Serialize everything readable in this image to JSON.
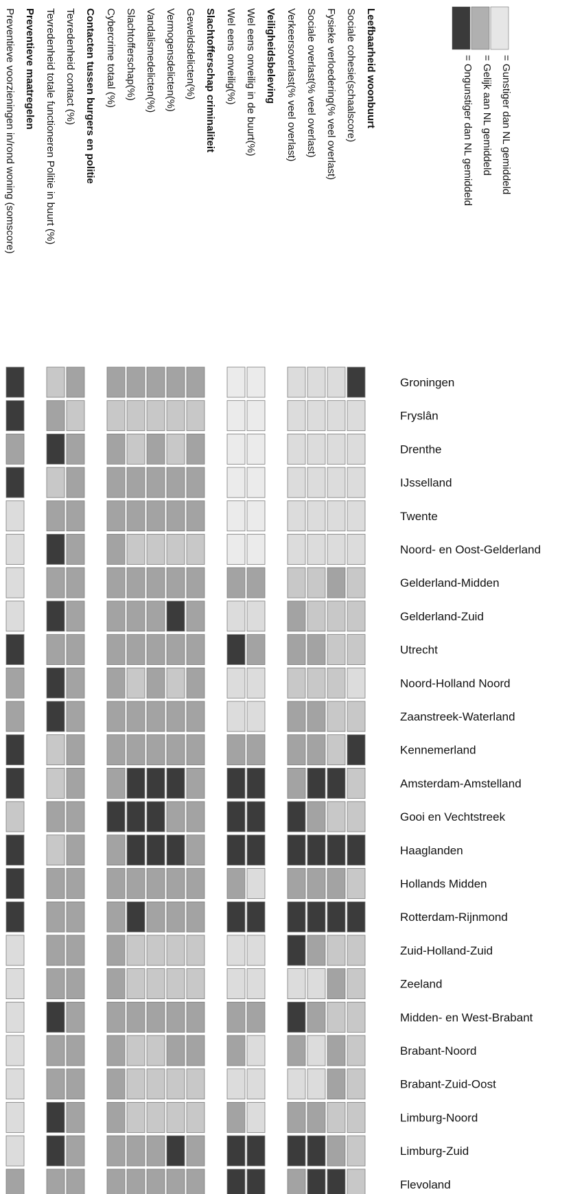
{
  "chart_data": {
    "type": "heatmap",
    "orientation": "rotated-90-clockwise",
    "legend": [
      {
        "label": "= Gunstiger dan NL gemiddeld",
        "level": 0
      },
      {
        "label": "= Gelijk aan NL gemiddeld",
        "level": 1
      },
      {
        "label": "= Ongunstiger dan NL gemiddeld",
        "level": 2
      }
    ],
    "level_colors": [
      "#e6e6e6",
      "#b0b0b0",
      "#3a3a3a"
    ],
    "cell_palette": [
      "#ebebeb",
      "#dcdcdc",
      "#c8c8c8",
      "#a3a3a3",
      "#3b3b3b"
    ],
    "regions": [
      "Groningen",
      "Fryslân",
      "Drenthe",
      "IJsselland",
      "Twente",
      "Noord- en Oost-Gelderland",
      "Gelderland-Midden",
      "Gelderland-Zuid",
      "Utrecht",
      "Noord-Holland Noord",
      "Zaanstreek-Waterland",
      "Kennemerland",
      "Amsterdam-Amstelland",
      "Gooi en Vechtstreek",
      "Haaglanden",
      "Hollands Midden",
      "Rotterdam-Rijnmond",
      "Zuid-Holland-Zuid",
      "Zeeland",
      "Midden- en West-Brabant",
      "Brabant-Noord",
      "Brabant-Zuid-Oost",
      "Limburg-Noord",
      "Limburg-Zuid",
      "Flevoland"
    ],
    "groups": [
      {
        "heading": "Leefbaarheid woonbuurt",
        "indicators": [
          {
            "label": "Sociale cohesie(schaalscore)",
            "values": [
              4,
              1,
              1,
              1,
              1,
              1,
              2,
              2,
              2,
              1,
              2,
              4,
              2,
              2,
              4,
              2,
              4,
              2,
              2,
              2,
              2,
              2,
              2,
              2,
              2
            ]
          },
          {
            "label": "Fysieke verloedering(% veel overlast)",
            "values": [
              1,
              1,
              1,
              1,
              1,
              1,
              3,
              2,
              2,
              2,
              2,
              2,
              4,
              2,
              4,
              3,
              4,
              2,
              3,
              2,
              3,
              3,
              2,
              3,
              4
            ]
          },
          {
            "label": "Sociale overlast(% veel overlast)",
            "values": [
              1,
              1,
              1,
              1,
              1,
              1,
              2,
              2,
              3,
              2,
              3,
              3,
              4,
              3,
              4,
              3,
              4,
              3,
              1,
              3,
              1,
              1,
              3,
              4,
              4
            ]
          },
          {
            "label": "Verkeersoverlast(% veel overlast)",
            "values": [
              1,
              1,
              1,
              1,
              1,
              1,
              2,
              3,
              3,
              2,
              3,
              3,
              3,
              4,
              4,
              3,
              4,
              4,
              1,
              4,
              3,
              1,
              3,
              4,
              3
            ]
          }
        ]
      },
      {
        "heading": "Veiligheidsbeleving",
        "indicators": [
          {
            "label": "Wel eens onveilig in de buurt(%)",
            "values": [
              0,
              0,
              0,
              0,
              0,
              0,
              3,
              1,
              3,
              1,
              1,
              3,
              4,
              4,
              4,
              1,
              4,
              1,
              1,
              3,
              1,
              1,
              1,
              4,
              4
            ]
          },
          {
            "label": "Wel eens onveilig(%)",
            "values": [
              0,
              0,
              0,
              0,
              0,
              0,
              3,
              1,
              4,
              1,
              1,
              3,
              4,
              4,
              4,
              3,
              4,
              1,
              1,
              3,
              3,
              1,
              3,
              4,
              4
            ]
          }
        ]
      },
      {
        "heading": "Slachtofferschap criminaliteit",
        "indicators": [
          {
            "label": "Geweldsdelicten(%)",
            "values": [
              3,
              2,
              3,
              3,
              3,
              2,
              3,
              3,
              3,
              3,
              3,
              3,
              3,
              3,
              3,
              3,
              3,
              2,
              2,
              3,
              3,
              2,
              2,
              3,
              3
            ]
          },
          {
            "label": "Vermogensdelicten(%)",
            "values": [
              3,
              2,
              2,
              3,
              3,
              2,
              3,
              4,
              3,
              2,
              3,
              3,
              4,
              3,
              4,
              3,
              3,
              2,
              2,
              3,
              3,
              2,
              2,
              4,
              3
            ]
          },
          {
            "label": "Vandalismedelicten(%)",
            "values": [
              3,
              2,
              3,
              3,
              3,
              2,
              3,
              3,
              3,
              3,
              3,
              3,
              4,
              4,
              4,
              3,
              3,
              2,
              2,
              3,
              2,
              2,
              2,
              3,
              3
            ]
          },
          {
            "label": "Slachtofferschap(%)",
            "values": [
              3,
              2,
              2,
              3,
              3,
              2,
              3,
              3,
              3,
              2,
              3,
              3,
              4,
              4,
              4,
              3,
              4,
              2,
              2,
              3,
              2,
              2,
              2,
              3,
              3
            ]
          },
          {
            "label": "Cybercrime totaal (%)",
            "values": [
              3,
              2,
              3,
              3,
              3,
              3,
              3,
              3,
              3,
              3,
              3,
              3,
              3,
              4,
              3,
              3,
              3,
              3,
              3,
              3,
              3,
              3,
              3,
              3,
              3
            ]
          }
        ]
      },
      {
        "heading": "Contacten tussen burgers en politie",
        "indicators": [
          {
            "label": "Tevredenheid contact (%)",
            "values": [
              3,
              2,
              3,
              3,
              3,
              3,
              3,
              3,
              3,
              3,
              3,
              3,
              3,
              3,
              3,
              3,
              3,
              3,
              3,
              3,
              3,
              3,
              3,
              3,
              3
            ]
          },
          {
            "label": "Tevredenheid totale functioneren Politie in buurt (%)",
            "values": [
              2,
              3,
              4,
              2,
              3,
              4,
              3,
              4,
              3,
              4,
              4,
              2,
              2,
              3,
              2,
              3,
              3,
              3,
              3,
              4,
              3,
              3,
              4,
              4,
              3
            ]
          }
        ]
      },
      {
        "heading": "Preventieve maatregelen",
        "indicators": [
          {
            "label": "Preventieve voorzieningen in/rond woning (somscore)",
            "values": [
              4,
              4,
              3,
              4,
              1,
              1,
              1,
              1,
              4,
              3,
              3,
              4,
              4,
              2,
              4,
              4,
              4,
              1,
              1,
              1,
              1,
              1,
              1,
              1,
              3
            ]
          }
        ]
      }
    ]
  }
}
